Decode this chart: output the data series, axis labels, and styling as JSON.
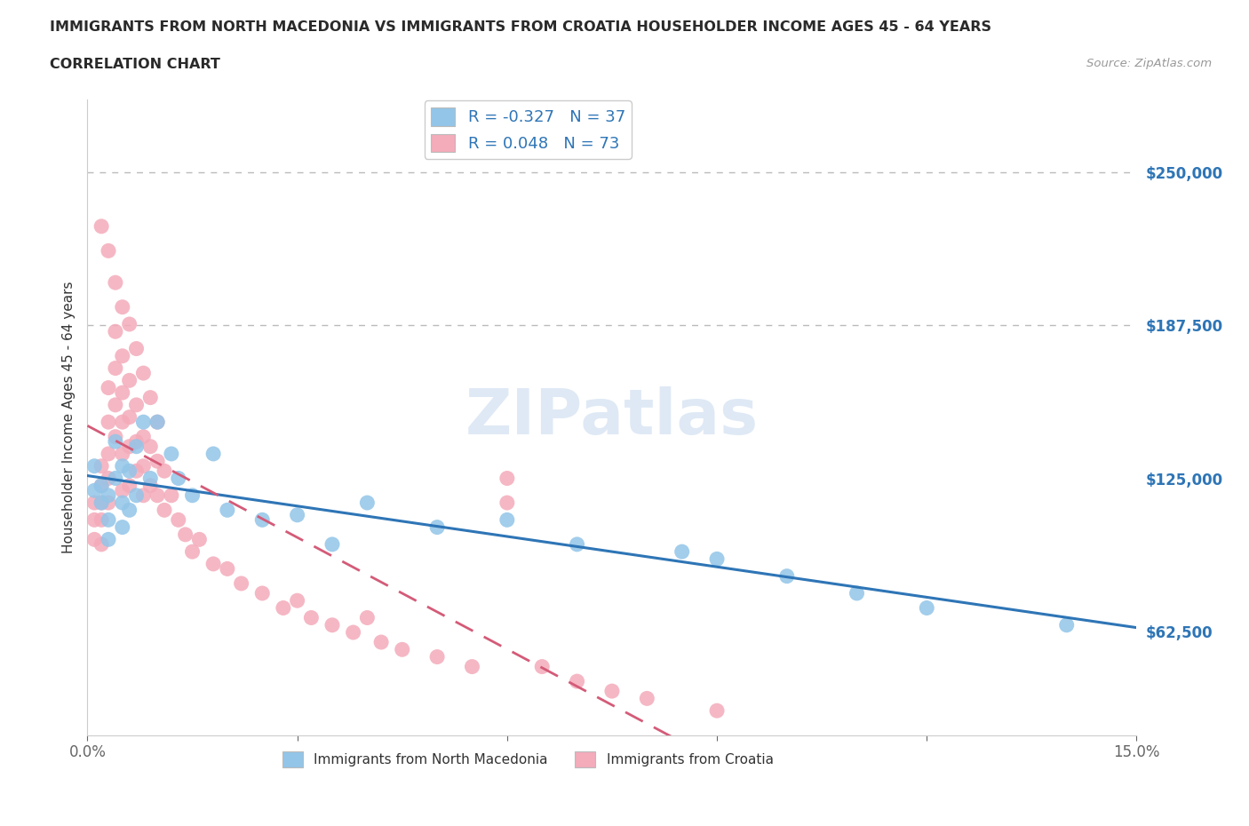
{
  "title_line1": "IMMIGRANTS FROM NORTH MACEDONIA VS IMMIGRANTS FROM CROATIA HOUSEHOLDER INCOME AGES 45 - 64 YEARS",
  "title_line2": "CORRELATION CHART",
  "source": "Source: ZipAtlas.com",
  "ylabel": "Householder Income Ages 45 - 64 years",
  "xmin": 0.0,
  "xmax": 0.15,
  "ymin": 20000,
  "ymax": 280000,
  "yticks": [
    62500,
    125000,
    187500,
    250000
  ],
  "ytick_labels": [
    "$62,500",
    "$125,000",
    "$187,500",
    "$250,000"
  ],
  "xticks": [
    0.0,
    0.03,
    0.06,
    0.09,
    0.12,
    0.15
  ],
  "xtick_labels": [
    "0.0%",
    "",
    "",
    "",
    "",
    "15.0%"
  ],
  "hlines_y": [
    187500,
    250000
  ],
  "R_blue": -0.327,
  "N_blue": 37,
  "R_pink": 0.048,
  "N_pink": 73,
  "blue_color": "#92C5E8",
  "pink_color": "#F4ABBA",
  "blue_line_color": "#2E75B6",
  "pink_line_color": "#D45B78",
  "legend_label_blue": "Immigrants from North Macedonia",
  "legend_label_pink": "Immigrants from Croatia",
  "watermark": "ZIPatlas",
  "blue_x": [
    0.001,
    0.001,
    0.002,
    0.002,
    0.003,
    0.003,
    0.003,
    0.004,
    0.004,
    0.005,
    0.005,
    0.005,
    0.006,
    0.006,
    0.007,
    0.007,
    0.008,
    0.009,
    0.01,
    0.012,
    0.013,
    0.015,
    0.018,
    0.02,
    0.025,
    0.03,
    0.035,
    0.04,
    0.05,
    0.06,
    0.07,
    0.085,
    0.09,
    0.1,
    0.11,
    0.12,
    0.14
  ],
  "blue_y": [
    130000,
    120000,
    122000,
    115000,
    118000,
    108000,
    100000,
    140000,
    125000,
    130000,
    115000,
    105000,
    128000,
    112000,
    138000,
    118000,
    148000,
    125000,
    148000,
    135000,
    125000,
    118000,
    135000,
    112000,
    108000,
    110000,
    98000,
    115000,
    105000,
    108000,
    98000,
    95000,
    92000,
    85000,
    78000,
    72000,
    65000
  ],
  "pink_x": [
    0.001,
    0.001,
    0.001,
    0.002,
    0.002,
    0.002,
    0.002,
    0.002,
    0.003,
    0.003,
    0.003,
    0.003,
    0.003,
    0.004,
    0.004,
    0.004,
    0.004,
    0.005,
    0.005,
    0.005,
    0.005,
    0.005,
    0.006,
    0.006,
    0.006,
    0.006,
    0.007,
    0.007,
    0.007,
    0.008,
    0.008,
    0.008,
    0.009,
    0.009,
    0.01,
    0.01,
    0.011,
    0.011,
    0.012,
    0.013,
    0.014,
    0.015,
    0.016,
    0.018,
    0.02,
    0.022,
    0.025,
    0.028,
    0.03,
    0.032,
    0.035,
    0.038,
    0.04,
    0.042,
    0.045,
    0.05,
    0.055,
    0.06,
    0.065,
    0.07,
    0.075,
    0.08,
    0.09,
    0.002,
    0.003,
    0.004,
    0.005,
    0.006,
    0.007,
    0.008,
    0.009,
    0.01,
    0.06
  ],
  "pink_y": [
    115000,
    108000,
    100000,
    130000,
    122000,
    115000,
    108000,
    98000,
    162000,
    148000,
    135000,
    125000,
    115000,
    185000,
    170000,
    155000,
    142000,
    175000,
    160000,
    148000,
    135000,
    120000,
    165000,
    150000,
    138000,
    122000,
    155000,
    140000,
    128000,
    142000,
    130000,
    118000,
    138000,
    122000,
    132000,
    118000,
    128000,
    112000,
    118000,
    108000,
    102000,
    95000,
    100000,
    90000,
    88000,
    82000,
    78000,
    72000,
    75000,
    68000,
    65000,
    62000,
    68000,
    58000,
    55000,
    52000,
    48000,
    115000,
    48000,
    42000,
    38000,
    35000,
    30000,
    228000,
    218000,
    205000,
    195000,
    188000,
    178000,
    168000,
    158000,
    148000,
    125000
  ]
}
